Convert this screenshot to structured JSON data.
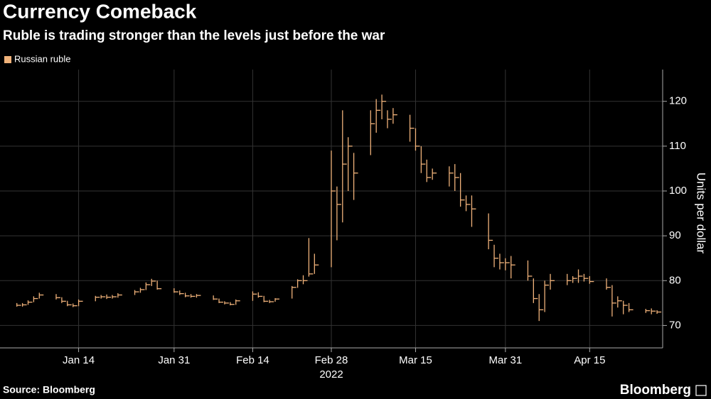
{
  "chart_data": {
    "type": "hlc",
    "title": "Currency Comeback",
    "subtitle": "Ruble is trading stronger than the levels just before the war",
    "y_label": "Units per dollar",
    "source": "Source: Bloomberg",
    "brand": "Bloomberg",
    "year_label": "2022",
    "x": [
      "2022-01-03",
      "2022-01-04",
      "2022-01-05",
      "2022-01-06",
      "2022-01-07",
      "2022-01-10",
      "2022-01-11",
      "2022-01-12",
      "2022-01-13",
      "2022-01-14",
      "2022-01-17",
      "2022-01-18",
      "2022-01-19",
      "2022-01-20",
      "2022-01-21",
      "2022-01-24",
      "2022-01-25",
      "2022-01-26",
      "2022-01-27",
      "2022-01-28",
      "2022-01-31",
      "2022-02-01",
      "2022-02-02",
      "2022-02-03",
      "2022-02-04",
      "2022-02-07",
      "2022-02-08",
      "2022-02-09",
      "2022-02-10",
      "2022-02-11",
      "2022-02-14",
      "2022-02-15",
      "2022-02-16",
      "2022-02-17",
      "2022-02-18",
      "2022-02-21",
      "2022-02-22",
      "2022-02-23",
      "2022-02-24",
      "2022-02-25",
      "2022-02-28",
      "2022-03-01",
      "2022-03-02",
      "2022-03-03",
      "2022-03-04",
      "2022-03-07",
      "2022-03-08",
      "2022-03-09",
      "2022-03-10",
      "2022-03-11",
      "2022-03-14",
      "2022-03-15",
      "2022-03-16",
      "2022-03-17",
      "2022-03-18",
      "2022-03-21",
      "2022-03-22",
      "2022-03-23",
      "2022-03-24",
      "2022-03-25",
      "2022-03-28",
      "2022-03-29",
      "2022-03-30",
      "2022-03-31",
      "2022-04-01",
      "2022-04-04",
      "2022-04-05",
      "2022-04-06",
      "2022-04-07",
      "2022-04-08",
      "2022-04-11",
      "2022-04-12",
      "2022-04-13",
      "2022-04-14",
      "2022-04-15",
      "2022-04-18",
      "2022-04-19",
      "2022-04-20",
      "2022-04-21",
      "2022-04-22",
      "2022-04-25",
      "2022-04-26",
      "2022-04-27"
    ],
    "series": [
      {
        "name": "Russian ruble",
        "color": "#f0b27a",
        "high": [
          75.0,
          75.0,
          75.6,
          76.5,
          77.3,
          77.0,
          76.3,
          75.5,
          74.9,
          75.8,
          76.6,
          76.8,
          76.9,
          76.8,
          77.2,
          77.9,
          78.4,
          79.6,
          80.4,
          80.0,
          78.3,
          77.8,
          77.3,
          77.0,
          77.0,
          76.7,
          76.0,
          75.4,
          75.2,
          75.8,
          77.6,
          77.4,
          76.6,
          75.7,
          76.1,
          78.8,
          80.3,
          81.2,
          89.5,
          86.0,
          109,
          101,
          118,
          112,
          108.5,
          118,
          120.5,
          121.5,
          118,
          118.5,
          117,
          114,
          110,
          107,
          105,
          105.5,
          106,
          104,
          99,
          99,
          95,
          88,
          86,
          85,
          85.5,
          84.5,
          80.5,
          77,
          80,
          81.5,
          81.5,
          81,
          82.5,
          81.5,
          81,
          80.5,
          79,
          76.5,
          75.5,
          75,
          73.7,
          73.8,
          73.4
        ],
        "low": [
          74.2,
          74.2,
          74.6,
          75.2,
          76.0,
          75.8,
          75.0,
          74.3,
          74.1,
          74.3,
          75.4,
          76.0,
          75.9,
          76.0,
          76.2,
          76.8,
          77.3,
          77.9,
          78.8,
          78.0,
          77.3,
          76.8,
          76.3,
          76.2,
          76.2,
          75.7,
          75.0,
          74.7,
          74.5,
          74.6,
          75.5,
          76.2,
          75.2,
          75.0,
          75.3,
          76.0,
          78.4,
          79.2,
          80.9,
          81.5,
          83,
          89,
          93,
          100,
          98,
          108,
          113,
          116,
          114,
          115,
          111,
          109,
          104,
          102,
          102.5,
          101,
          100,
          96.5,
          95.5,
          92,
          87,
          83,
          82.5,
          82.3,
          80.5,
          80,
          75,
          71,
          73,
          78,
          79,
          79.5,
          79.5,
          79.8,
          79.3,
          78,
          72,
          74,
          72.5,
          73,
          72.8,
          72.5,
          72.6
        ],
        "close": [
          74.5,
          74.6,
          75.2,
          76.0,
          76.8,
          76.2,
          75.4,
          74.6,
          74.4,
          75.4,
          76.3,
          76.4,
          76.3,
          76.4,
          76.8,
          77.5,
          78.0,
          79.1,
          79.9,
          78.2,
          77.5,
          77.1,
          76.6,
          76.5,
          76.7,
          75.9,
          75.2,
          75.0,
          74.7,
          75.5,
          77.0,
          76.5,
          75.4,
          75.3,
          75.9,
          78.5,
          80.0,
          80.0,
          81.5,
          83.5,
          100,
          97,
          106,
          110,
          104,
          115,
          118,
          120,
          116,
          117,
          114,
          110,
          106,
          103,
          104,
          104,
          103,
          98,
          97,
          96,
          89,
          85,
          84,
          84,
          83.5,
          81,
          76,
          73.5,
          79,
          80,
          80,
          80.5,
          81,
          80.5,
          79.8,
          78.5,
          75,
          75.5,
          74.5,
          73.5,
          73.3,
          73.2,
          73.0
        ]
      }
    ],
    "xlim": [
      "2021-12-31",
      "2022-04-28"
    ],
    "xticks": [
      {
        "value": "2022-01-14",
        "label": "Jan 14"
      },
      {
        "value": "2022-01-31",
        "label": "Jan 31"
      },
      {
        "value": "2022-02-14",
        "label": "Feb 14"
      },
      {
        "value": "2022-02-28",
        "label": "Feb 28"
      },
      {
        "value": "2022-03-15",
        "label": "Mar 15"
      },
      {
        "value": "2022-03-31",
        "label": "Mar 31"
      },
      {
        "value": "2022-04-15",
        "label": "Apr 15"
      }
    ],
    "ylim": [
      65,
      125.5
    ],
    "yticks": [
      70,
      80,
      90,
      100,
      110,
      120
    ],
    "grid": true,
    "legend": "top-left"
  }
}
